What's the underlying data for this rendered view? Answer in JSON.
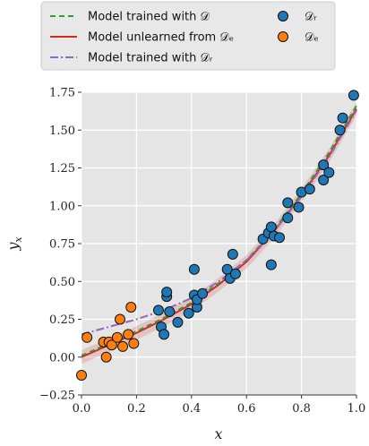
{
  "chart_data": {
    "type": "scatter",
    "xlabel": "x",
    "ylabel": "y_x",
    "xlim": [
      0.0,
      1.0
    ],
    "ylim": [
      -0.25,
      1.75
    ],
    "xticks": [
      "0.0",
      "0.2",
      "0.4",
      "0.6",
      "0.8",
      "1.0"
    ],
    "yticks": [
      "−0.25",
      "0.00",
      "0.25",
      "0.50",
      "0.75",
      "1.00",
      "1.25",
      "1.50",
      "1.75"
    ],
    "grid": true,
    "legend_position": "top",
    "colors": {
      "model_trained": "#2ca02c",
      "model_unlearned": "#d62728",
      "model_trained_retain": "#9467bd",
      "retain_points": "#1f77b4",
      "erase_points": "#ff7f0e",
      "background": "#e5e5e5"
    },
    "lines": [
      {
        "name": "Model trained with 𝒟",
        "style": "dashed",
        "x": [
          0.0,
          0.1,
          0.2,
          0.3,
          0.4,
          0.5,
          0.6,
          0.7,
          0.8,
          0.9,
          1.0
        ],
        "y": [
          0.01,
          0.09,
          0.17,
          0.26,
          0.36,
          0.49,
          0.64,
          0.84,
          1.08,
          1.35,
          1.66
        ]
      },
      {
        "name": "Model unlearned from 𝒟ₑ",
        "style": "solid",
        "x": [
          0.0,
          0.1,
          0.2,
          0.3,
          0.4,
          0.5,
          0.6,
          0.7,
          0.8,
          0.9,
          1.0
        ],
        "y": [
          0.0,
          0.08,
          0.16,
          0.25,
          0.35,
          0.48,
          0.63,
          0.83,
          1.07,
          1.33,
          1.64
        ]
      },
      {
        "name": "Model trained with 𝒟ᵣ",
        "style": "dashdot",
        "x": [
          0.0,
          0.1,
          0.2,
          0.3,
          0.4,
          0.5,
          0.6,
          0.7,
          0.8,
          0.9,
          1.0
        ],
        "y": [
          0.15,
          0.2,
          0.25,
          0.31,
          0.39,
          0.5,
          0.64,
          0.83,
          1.06,
          1.32,
          1.63
        ]
      }
    ],
    "points": [
      {
        "name": "𝒟ᵣ",
        "x": [
          0.28,
          0.29,
          0.3,
          0.31,
          0.31,
          0.32,
          0.35,
          0.39,
          0.41,
          0.41,
          0.42,
          0.42,
          0.44,
          0.53,
          0.54,
          0.55,
          0.56,
          0.66,
          0.68,
          0.69,
          0.69,
          0.7,
          0.72,
          0.75,
          0.75,
          0.79,
          0.8,
          0.83,
          0.88,
          0.88,
          0.9,
          0.94,
          0.95,
          0.99
        ],
        "y": [
          0.31,
          0.2,
          0.15,
          0.4,
          0.43,
          0.3,
          0.23,
          0.29,
          0.41,
          0.58,
          0.33,
          0.38,
          0.42,
          0.58,
          0.52,
          0.68,
          0.55,
          0.78,
          0.82,
          0.86,
          0.61,
          0.8,
          0.79,
          0.92,
          1.02,
          0.99,
          1.09,
          1.11,
          1.27,
          1.17,
          1.22,
          1.5,
          1.58,
          1.73
        ]
      },
      {
        "name": "𝒟ₑ",
        "x": [
          0.0,
          0.02,
          0.08,
          0.09,
          0.1,
          0.11,
          0.13,
          0.14,
          0.15,
          0.17,
          0.18,
          0.19
        ],
        "y": [
          -0.12,
          0.13,
          0.1,
          0.0,
          0.1,
          0.08,
          0.13,
          0.25,
          0.07,
          0.15,
          0.33,
          0.09
        ]
      }
    ],
    "legend": [
      {
        "label": "Model trained with 𝒟",
        "kind": "dashed",
        "series": "model_trained"
      },
      {
        "label": "Model unlearned from 𝒟ₑ",
        "kind": "solid",
        "series": "model_unlearned"
      },
      {
        "label": "Model trained with 𝒟ᵣ",
        "kind": "dashdot",
        "series": "model_trained_retain"
      },
      {
        "label": "𝒟ᵣ",
        "kind": "marker",
        "series": "retain_points"
      },
      {
        "label": "𝒟ₑ",
        "kind": "marker",
        "series": "erase_points"
      }
    ]
  }
}
